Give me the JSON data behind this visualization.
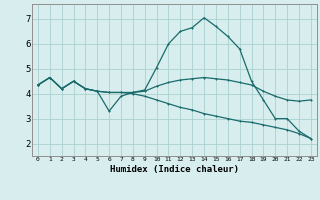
{
  "xlabel": "Humidex (Indice chaleur)",
  "background_color": "#d8eeee",
  "grid_color": "#aacfcf",
  "line_color": "#1a6b6b",
  "xlim": [
    -0.5,
    23.5
  ],
  "ylim": [
    1.5,
    7.6
  ],
  "xticks": [
    0,
    1,
    2,
    3,
    4,
    5,
    6,
    7,
    8,
    9,
    10,
    11,
    12,
    13,
    14,
    15,
    16,
    17,
    18,
    19,
    20,
    21,
    22,
    23
  ],
  "yticks": [
    2,
    3,
    4,
    5,
    6,
    7
  ],
  "line1_x": [
    0,
    1,
    2,
    3,
    4,
    5,
    6,
    7,
    8,
    9,
    10,
    11,
    12,
    13,
    14,
    15,
    16,
    17,
    18,
    19,
    20,
    21,
    22,
    23
  ],
  "line1_y": [
    4.35,
    4.65,
    4.2,
    4.5,
    4.2,
    4.1,
    3.3,
    3.9,
    4.05,
    4.15,
    5.05,
    6.0,
    6.5,
    6.65,
    7.05,
    6.7,
    6.3,
    5.8,
    4.5,
    3.75,
    3.0,
    3.0,
    2.5,
    2.2
  ],
  "line2_x": [
    0,
    1,
    2,
    3,
    4,
    5,
    6,
    7,
    8,
    9,
    10,
    11,
    12,
    13,
    14,
    15,
    16,
    17,
    18,
    19,
    20,
    21,
    22,
    23
  ],
  "line2_y": [
    4.35,
    4.65,
    4.2,
    4.5,
    4.2,
    4.1,
    4.05,
    4.05,
    4.05,
    4.1,
    4.3,
    4.45,
    4.55,
    4.6,
    4.65,
    4.6,
    4.55,
    4.45,
    4.35,
    4.1,
    3.9,
    3.75,
    3.7,
    3.75
  ],
  "line3_x": [
    0,
    1,
    2,
    3,
    4,
    5,
    6,
    7,
    8,
    9,
    10,
    11,
    12,
    13,
    14,
    15,
    16,
    17,
    18,
    19,
    20,
    21,
    22,
    23
  ],
  "line3_y": [
    4.35,
    4.65,
    4.2,
    4.5,
    4.2,
    4.1,
    4.05,
    4.05,
    4.0,
    3.9,
    3.75,
    3.6,
    3.45,
    3.35,
    3.2,
    3.1,
    3.0,
    2.9,
    2.85,
    2.75,
    2.65,
    2.55,
    2.4,
    2.2
  ]
}
